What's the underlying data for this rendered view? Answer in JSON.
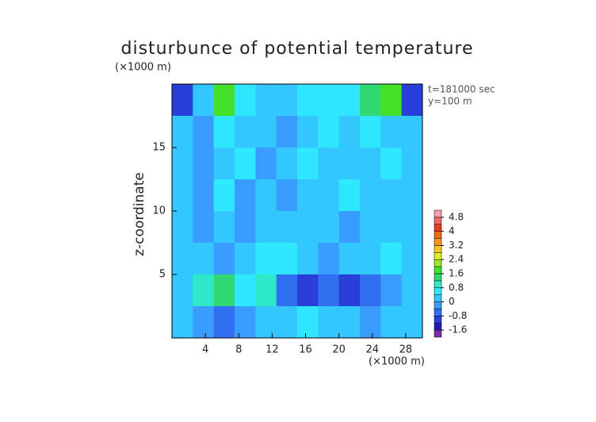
{
  "chart_data": {
    "type": "contour",
    "title": "disturbunce of potential temperature",
    "y_unit_label": "(×1000 m)",
    "x_unit_label": "(×1000 m)",
    "ylabel": "z-coordinate",
    "annotations": [
      "t=181000 sec",
      "y=100 m"
    ],
    "xlim": [
      0,
      30
    ],
    "ylim": [
      0,
      20
    ],
    "xticks": [
      4,
      8,
      12,
      16,
      20,
      24,
      28
    ],
    "yticks": [
      5,
      10,
      15
    ],
    "x": [
      1.25,
      3.75,
      6.25,
      8.75,
      11.25,
      13.75,
      16.25,
      18.75,
      21.25,
      23.75,
      26.25,
      28.75
    ],
    "y": [
      18.75,
      16.25,
      13.75,
      11.25,
      8.75,
      6.25,
      3.75,
      1.25
    ],
    "z": [
      [
        -1.2,
        0.2,
        1.6,
        0.4,
        0.2,
        0.2,
        0.6,
        0.4,
        0.4,
        1.2,
        1.6,
        -1.2
      ],
      [
        0.2,
        -0.2,
        0.4,
        0.2,
        0.2,
        -0.2,
        0.2,
        0.4,
        0.2,
        0.6,
        0.2,
        0.2
      ],
      [
        0.2,
        -0.4,
        0.2,
        0.4,
        -0.2,
        0.2,
        0.4,
        0.2,
        0.2,
        0.2,
        0.4,
        0.2
      ],
      [
        0.2,
        -0.4,
        0.6,
        -0.4,
        0.2,
        -0.2,
        0.2,
        0.2,
        0.4,
        0.2,
        0.2,
        0.2
      ],
      [
        0.2,
        -0.4,
        0.2,
        -0.4,
        0.2,
        0.2,
        0.2,
        0.2,
        -0.2,
        0.2,
        0.2,
        0.2
      ],
      [
        0.2,
        0.2,
        -0.2,
        0.2,
        0.4,
        0.6,
        0.2,
        -0.2,
        0.2,
        0.2,
        0.4,
        0.2
      ],
      [
        0.2,
        0.8,
        1.2,
        0.6,
        0.8,
        -0.8,
        -1.2,
        -0.8,
        -1.2,
        -0.8,
        -0.2,
        0.2
      ],
      [
        0.2,
        -0.4,
        -0.8,
        -0.4,
        0.2,
        0.2,
        0.4,
        0.2,
        0.2,
        -0.2,
        0.2,
        0.2
      ]
    ],
    "colorbar": {
      "lim": [
        -2,
        5.2
      ],
      "ticks": [
        -1.6,
        -0.8,
        0,
        0.8,
        1.6,
        2.4,
        3.2,
        4,
        4.8
      ],
      "levels": [
        -2,
        -1.6,
        -1.2,
        -0.8,
        -0.4,
        0,
        0.4,
        0.8,
        1.2,
        1.6,
        2,
        2.4,
        2.8,
        3.2,
        3.6,
        4,
        4.4,
        4.8,
        5.2
      ],
      "colors": [
        "#7a2fa8",
        "#1f1fb4",
        "#2a3fd8",
        "#2f6ff0",
        "#3a9cff",
        "#33c6ff",
        "#2fe8ff",
        "#2fe8c8",
        "#2fd870",
        "#44e02a",
        "#9ae82a",
        "#e4ee22",
        "#f6c81e",
        "#f7961c",
        "#f06a1a",
        "#e83a1e",
        "#f06868",
        "#f4a0b0"
      ]
    }
  }
}
